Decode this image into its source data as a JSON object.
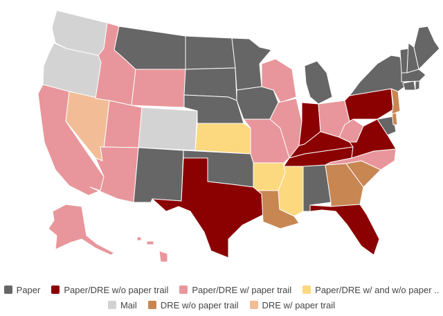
{
  "colors": {
    "paper": "#666666",
    "paper_dre_no_trail": "#8b0000",
    "paper_dre_trail": "#e8969b",
    "paper_dre_mixed": "#fcd87f",
    "mail": "#d3d3d3",
    "dre_no_trail": "#c88653",
    "dre_trail": "#f2bd96"
  },
  "legend": {
    "row1": [
      {
        "key": "paper",
        "label": "Paper"
      },
      {
        "key": "paper_dre_no_trail",
        "label": "Paper/DRE w/o paper trail"
      },
      {
        "key": "paper_dre_trail",
        "label": "Paper/DRE w/ paper trail"
      },
      {
        "key": "paper_dre_mixed",
        "label": "Paper/DRE w/ and w/o paper .."
      }
    ],
    "row2": [
      {
        "key": "mail",
        "label": "Mail"
      },
      {
        "key": "dre_no_trail",
        "label": "DRE w/o paper trail"
      },
      {
        "key": "dre_trail",
        "label": "DRE w/ paper trail"
      }
    ]
  },
  "states": {
    "WA": "mail",
    "OR": "mail",
    "CO": "mail",
    "CA": "paper_dre_trail",
    "ID": "paper_dre_trail",
    "WY": "paper_dre_trail",
    "UT": "paper_dre_trail",
    "AZ": "paper_dre_trail",
    "MO": "paper_dre_trail",
    "WI": "paper_dre_trail",
    "IL": "paper_dre_trail",
    "OH": "paper_dre_trail",
    "WV": "paper_dre_trail",
    "NC": "paper_dre_trail",
    "AK": "paper_dre_trail",
    "HI": "paper_dre_trail",
    "NV": "dre_trail",
    "KS": "paper_dre_mixed",
    "AR": "paper_dre_mixed",
    "MS": "paper_dre_mixed",
    "TX": "paper_dre_no_trail",
    "IN": "paper_dre_no_trail",
    "KY": "paper_dre_no_trail",
    "TN": "paper_dre_no_trail",
    "VA": "paper_dre_no_trail",
    "PA": "paper_dre_no_trail",
    "FL": "paper_dre_no_trail",
    "LA": "dre_no_trail",
    "GA": "dre_no_trail",
    "SC": "dre_no_trail",
    "NJ": "dre_no_trail",
    "DE": "dre_no_trail",
    "MT": "paper",
    "ND": "paper",
    "SD": "paper",
    "NE": "paper",
    "MN": "paper",
    "IA": "paper",
    "NM": "paper",
    "OK": "paper",
    "AL": "paper",
    "MI": "paper",
    "NY": "paper",
    "ME": "paper",
    "VT": "paper",
    "NH": "paper",
    "MA": "paper",
    "CT": "paper",
    "RI": "paper",
    "MD": "paper"
  }
}
